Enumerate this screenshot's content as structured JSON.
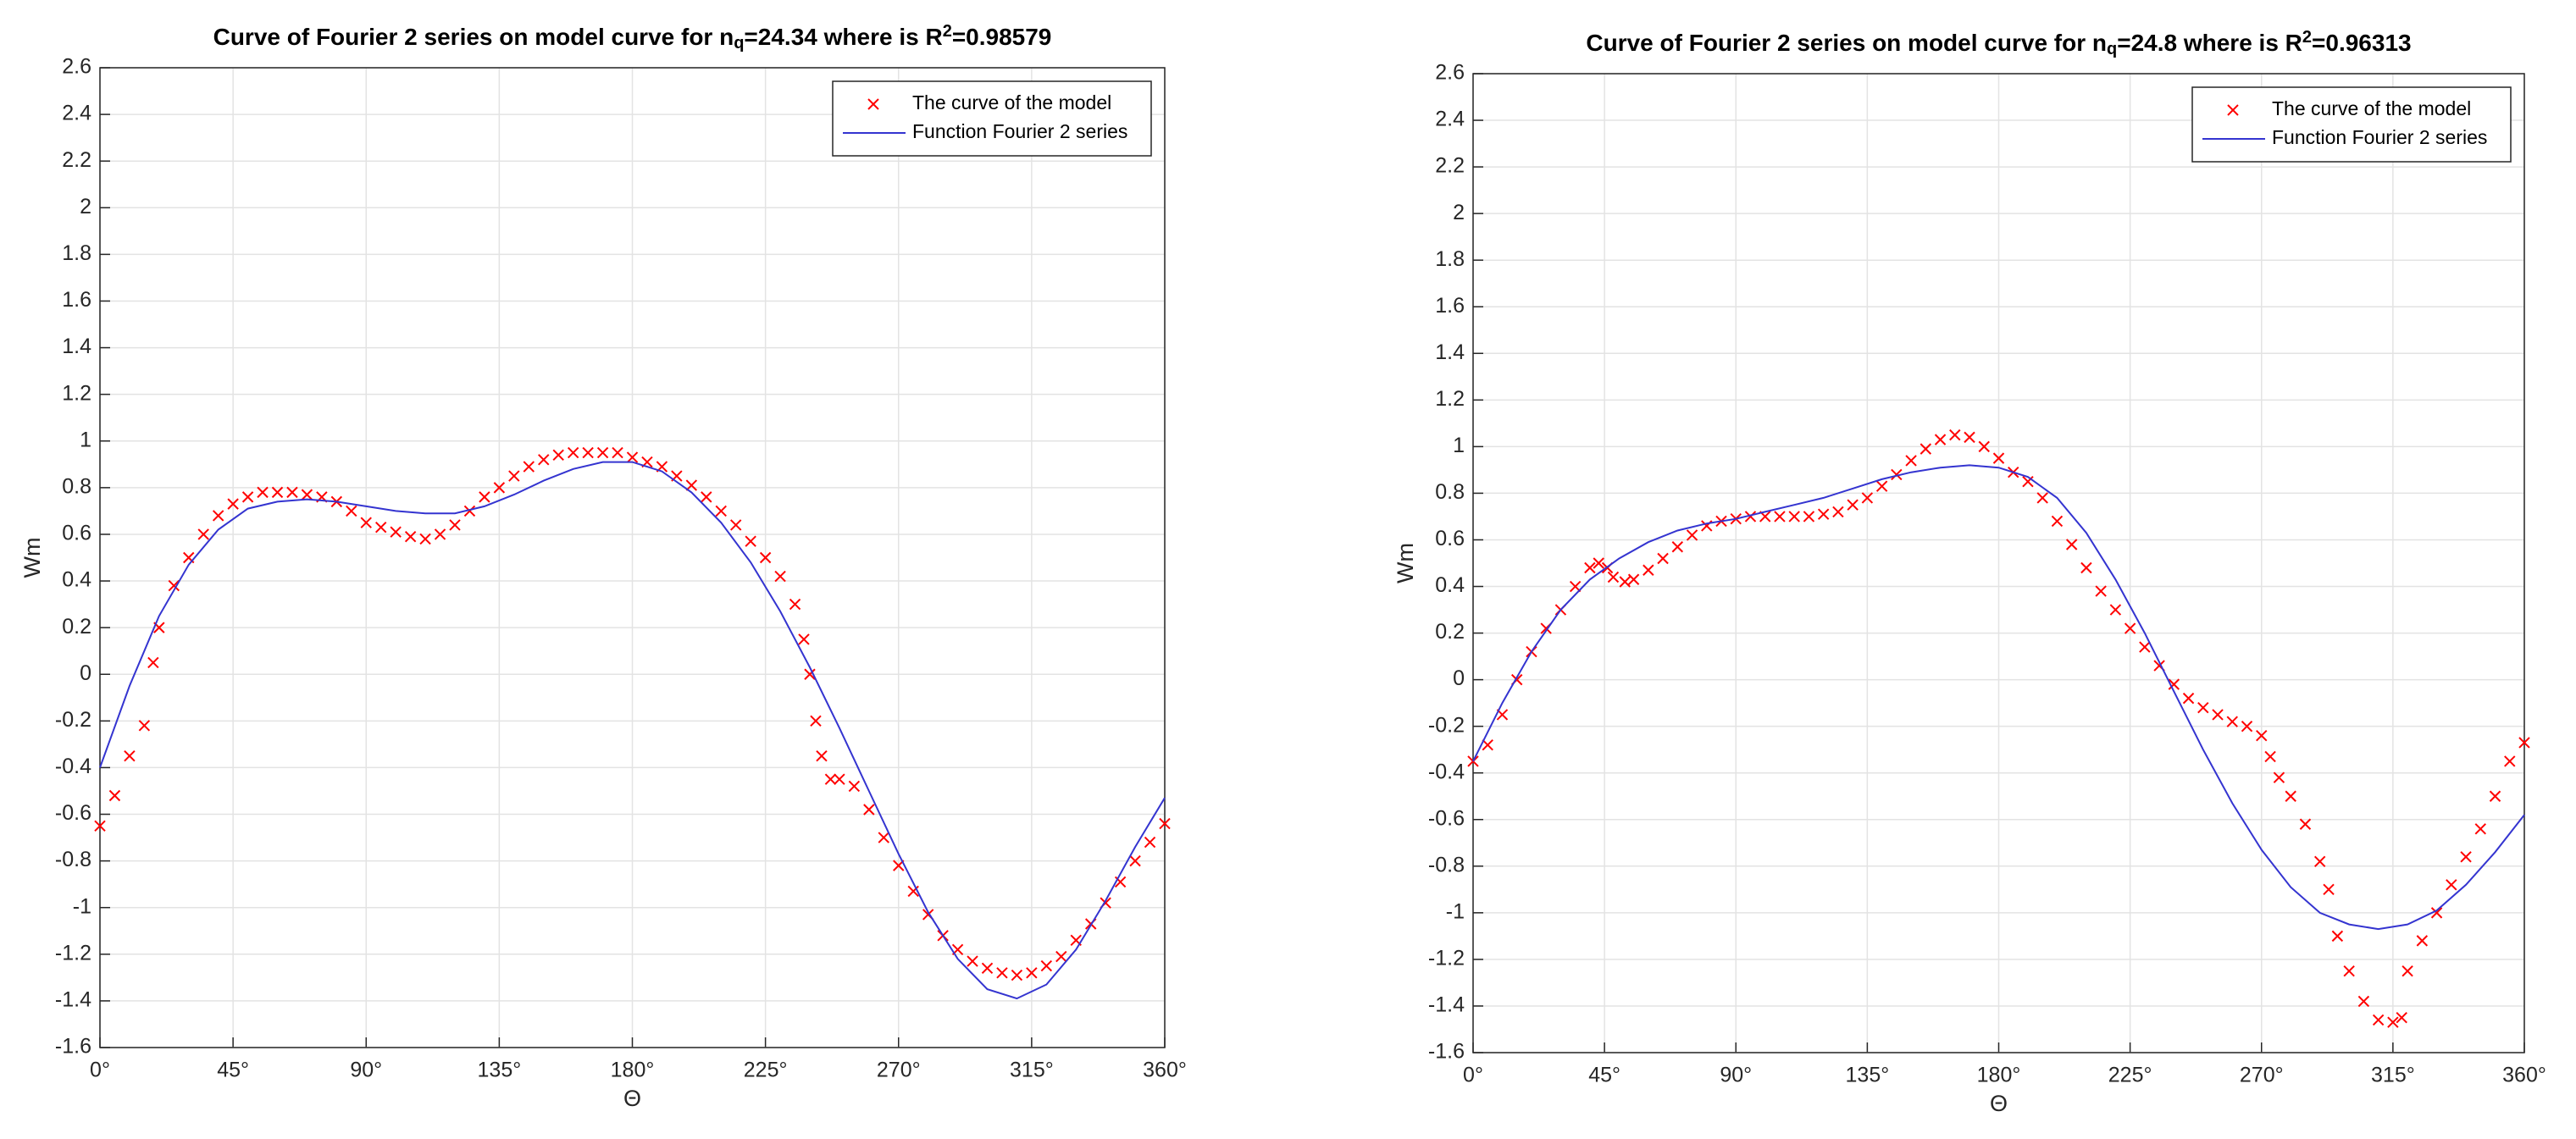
{
  "chart_data": [
    {
      "type": "line",
      "title": [
        "Curve of Fourier 2 series on model curve for n",
        "q",
        "=24.34 where is R",
        "2",
        "=0.98579"
      ],
      "xlabel": "Θ",
      "ylabel": "Wm",
      "xlim": [
        0,
        360
      ],
      "xticks": [
        {
          "value": 0,
          "label": "0°"
        },
        {
          "value": 45,
          "label": "45°"
        },
        {
          "value": 90,
          "label": "90°"
        },
        {
          "value": 135,
          "label": "135°"
        },
        {
          "value": 180,
          "label": "180°"
        },
        {
          "value": 225,
          "label": "225°"
        },
        {
          "value": 270,
          "label": "270°"
        },
        {
          "value": 315,
          "label": "315°"
        },
        {
          "value": 360,
          "label": "360°"
        }
      ],
      "ylim": [
        -1.6,
        2.6
      ],
      "yticks": [
        -1.6,
        -1.4,
        -1.2,
        -1,
        -0.8,
        -0.6,
        -0.4,
        -0.2,
        0,
        0.2,
        0.4,
        0.6,
        0.8,
        1,
        1.2,
        1.4,
        1.6,
        1.8,
        2,
        2.2,
        2.4,
        2.6
      ],
      "grid": true,
      "legend": "upper right",
      "series": [
        {
          "name": "The curve of the model",
          "color": "#ff0000",
          "marker": "x",
          "x": [
            0,
            5,
            10,
            15,
            18,
            20,
            25,
            30,
            35,
            40,
            45,
            50,
            55,
            60,
            65,
            70,
            75,
            80,
            85,
            90,
            95,
            100,
            105,
            110,
            115,
            120,
            125,
            130,
            135,
            140,
            145,
            150,
            155,
            160,
            165,
            170,
            175,
            180,
            185,
            190,
            195,
            200,
            205,
            210,
            215,
            220,
            225,
            230,
            235,
            238,
            240,
            242,
            244,
            247,
            250,
            255,
            260,
            265,
            270,
            275,
            280,
            285,
            290,
            295,
            300,
            305,
            310,
            315,
            320,
            325,
            330,
            335,
            340,
            345,
            350,
            355,
            360
          ],
          "values": [
            -0.65,
            -0.52,
            -0.35,
            -0.22,
            0.05,
            0.2,
            0.38,
            0.5,
            0.6,
            0.68,
            0.73,
            0.76,
            0.78,
            0.78,
            0.78,
            0.77,
            0.76,
            0.74,
            0.7,
            0.65,
            0.63,
            0.61,
            0.59,
            0.58,
            0.6,
            0.64,
            0.7,
            0.76,
            0.8,
            0.85,
            0.89,
            0.92,
            0.94,
            0.95,
            0.95,
            0.95,
            0.95,
            0.93,
            0.91,
            0.89,
            0.85,
            0.81,
            0.76,
            0.7,
            0.64,
            0.57,
            0.5,
            0.42,
            0.3,
            0.15,
            0.0,
            -0.2,
            -0.35,
            -0.45,
            -0.45,
            -0.48,
            -0.58,
            -0.7,
            -0.82,
            -0.93,
            -1.03,
            -1.12,
            -1.18,
            -1.23,
            -1.26,
            -1.28,
            -1.29,
            -1.28,
            -1.25,
            -1.21,
            -1.14,
            -1.07,
            -0.98,
            -0.89,
            -0.8,
            -0.72,
            -0.64
          ]
        },
        {
          "name": "Function Fourier 2 series",
          "color": "#3434d0",
          "marker": "none",
          "x": [
            0,
            10,
            20,
            30,
            40,
            50,
            60,
            70,
            80,
            90,
            100,
            110,
            120,
            130,
            140,
            150,
            160,
            170,
            180,
            190,
            200,
            210,
            220,
            230,
            240,
            250,
            260,
            270,
            280,
            290,
            300,
            310,
            320,
            330,
            340,
            350,
            360
          ],
          "values": [
            -0.4,
            -0.05,
            0.25,
            0.47,
            0.62,
            0.71,
            0.74,
            0.75,
            0.74,
            0.72,
            0.7,
            0.69,
            0.69,
            0.72,
            0.77,
            0.83,
            0.88,
            0.91,
            0.91,
            0.87,
            0.78,
            0.65,
            0.48,
            0.27,
            0.03,
            -0.23,
            -0.5,
            -0.77,
            -1.02,
            -1.22,
            -1.35,
            -1.39,
            -1.33,
            -1.18,
            -0.97,
            -0.74,
            -0.53
          ]
        }
      ]
    },
    {
      "type": "line",
      "title": [
        "Curve of Fourier 2 series on model curve for n",
        "q",
        "=24.8 where is R",
        "2",
        "=0.96313"
      ],
      "xlabel": "Θ",
      "ylabel": "Wm",
      "xlim": [
        0,
        360
      ],
      "xticks": [
        {
          "value": 0,
          "label": "0°"
        },
        {
          "value": 45,
          "label": "45°"
        },
        {
          "value": 90,
          "label": "90°"
        },
        {
          "value": 135,
          "label": "135°"
        },
        {
          "value": 180,
          "label": "180°"
        },
        {
          "value": 225,
          "label": "225°"
        },
        {
          "value": 270,
          "label": "270°"
        },
        {
          "value": 315,
          "label": "315°"
        },
        {
          "value": 360,
          "label": "360°"
        }
      ],
      "ylim": [
        -1.6,
        2.6
      ],
      "yticks": [
        -1.6,
        -1.4,
        -1.2,
        -1,
        -0.8,
        -0.6,
        -0.4,
        -0.2,
        0,
        0.2,
        0.4,
        0.6,
        0.8,
        1,
        1.2,
        1.4,
        1.6,
        1.8,
        2,
        2.2,
        2.4,
        2.6
      ],
      "grid": true,
      "legend": "upper right",
      "series": [
        {
          "name": "The curve of the model",
          "color": "#ff0000",
          "marker": "x",
          "x": [
            0,
            5,
            10,
            15,
            20,
            25,
            30,
            35,
            40,
            43,
            46,
            48,
            52,
            55,
            60,
            65,
            70,
            75,
            80,
            85,
            90,
            95,
            100,
            105,
            110,
            115,
            120,
            125,
            130,
            135,
            140,
            145,
            150,
            155,
            160,
            165,
            170,
            175,
            180,
            185,
            190,
            195,
            200,
            205,
            210,
            215,
            220,
            225,
            230,
            235,
            240,
            245,
            250,
            255,
            260,
            265,
            270,
            273,
            276,
            280,
            285,
            290,
            293,
            296,
            300,
            305,
            310,
            315,
            318,
            320,
            325,
            330,
            335,
            340,
            345,
            350,
            355,
            360
          ],
          "values": [
            -0.35,
            -0.28,
            -0.15,
            0.0,
            0.12,
            0.22,
            0.3,
            0.4,
            0.48,
            0.5,
            0.48,
            0.44,
            0.42,
            0.43,
            0.47,
            0.52,
            0.57,
            0.62,
            0.66,
            0.68,
            0.69,
            0.7,
            0.7,
            0.7,
            0.7,
            0.7,
            0.71,
            0.72,
            0.75,
            0.78,
            0.83,
            0.88,
            0.94,
            0.99,
            1.03,
            1.05,
            1.04,
            1.0,
            0.95,
            0.89,
            0.85,
            0.78,
            0.68,
            0.58,
            0.48,
            0.38,
            0.3,
            0.22,
            0.14,
            0.06,
            -0.02,
            -0.08,
            -0.12,
            -0.15,
            -0.18,
            -0.2,
            -0.24,
            -0.33,
            -0.42,
            -0.5,
            -0.62,
            -0.78,
            -0.9,
            -1.1,
            -1.25,
            -1.38,
            -1.46,
            -1.47,
            -1.45,
            -1.25,
            -1.12,
            -1.0,
            -0.88,
            -0.76,
            -0.64,
            -0.5,
            -0.35,
            -0.27
          ]
        },
        {
          "name": "Function Fourier 2 series",
          "color": "#3434d0",
          "marker": "none",
          "x": [
            0,
            10,
            20,
            30,
            40,
            50,
            60,
            70,
            80,
            90,
            100,
            110,
            120,
            130,
            140,
            150,
            160,
            170,
            180,
            190,
            200,
            210,
            220,
            230,
            240,
            250,
            260,
            270,
            280,
            290,
            300,
            310,
            320,
            330,
            340,
            350,
            360
          ],
          "values": [
            -0.35,
            -0.1,
            0.12,
            0.3,
            0.43,
            0.52,
            0.59,
            0.64,
            0.67,
            0.69,
            0.72,
            0.75,
            0.78,
            0.82,
            0.86,
            0.89,
            0.91,
            0.92,
            0.91,
            0.87,
            0.78,
            0.63,
            0.43,
            0.2,
            -0.05,
            -0.3,
            -0.53,
            -0.73,
            -0.89,
            -1.0,
            -1.05,
            -1.07,
            -1.05,
            -0.99,
            -0.88,
            -0.74,
            -0.58
          ]
        }
      ]
    }
  ]
}
